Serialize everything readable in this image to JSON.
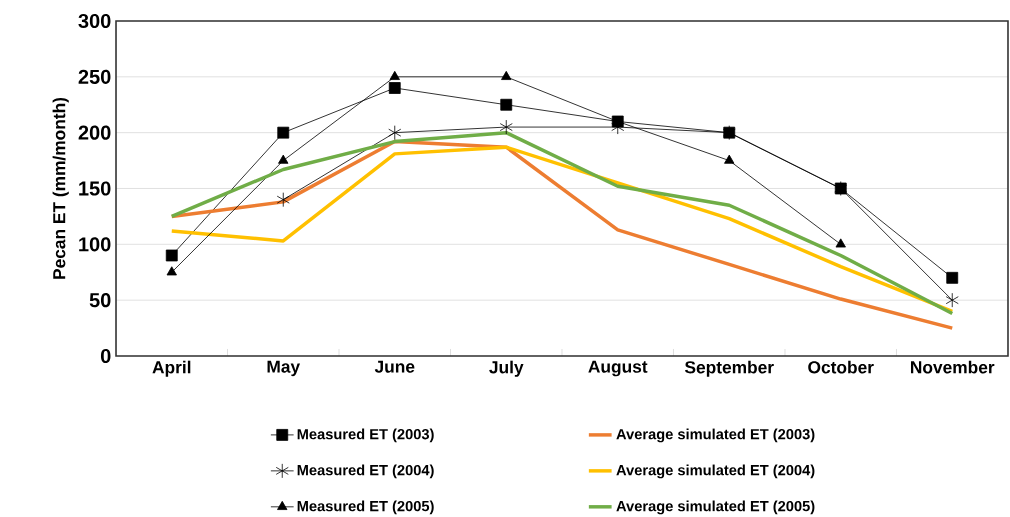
{
  "chart_data": {
    "type": "line",
    "ylabel": "Pecan ET (mm/month)",
    "categories": [
      "April",
      "May",
      "June",
      "July",
      "August",
      "September",
      "October",
      "November"
    ],
    "series": [
      {
        "name": "Measured ET (2003)",
        "color": "#000000",
        "marker": "square",
        "values": [
          90,
          200,
          240,
          225,
          210,
          200,
          150,
          70
        ]
      },
      {
        "name": "Average simulated ET (2003)",
        "color": "#ed7d31",
        "marker": "none",
        "values": [
          125,
          138,
          192,
          187,
          113,
          82,
          51,
          25
        ]
      },
      {
        "name": "Measured ET (2004)",
        "color": "#000000",
        "marker": "cross",
        "values": [
          null,
          140,
          200,
          205,
          205,
          200,
          150,
          50
        ]
      },
      {
        "name": "Average simulated ET (2004)",
        "color": "#ffc000",
        "marker": "none",
        "values": [
          112,
          103,
          181,
          187,
          155,
          123,
          80,
          40
        ]
      },
      {
        "name": "Measured ET (2005)",
        "color": "#000000",
        "marker": "triangle",
        "values": [
          75,
          175,
          250,
          250,
          210,
          175,
          100,
          null
        ]
      },
      {
        "name": "Average simulated ET (2005)",
        "color": "#70ad47",
        "marker": "none",
        "values": [
          125,
          167,
          192,
          200,
          152,
          135,
          90,
          38
        ]
      }
    ],
    "ylim": [
      0,
      300
    ],
    "yticks": [
      0,
      50,
      100,
      150,
      200,
      250,
      300
    ],
    "grid": "y",
    "legend": "bottom",
    "line_style": "solid"
  }
}
